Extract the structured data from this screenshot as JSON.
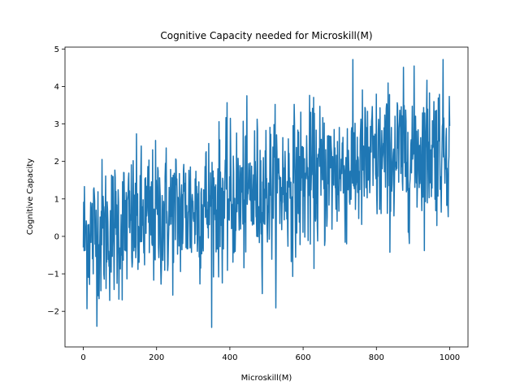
{
  "chart_data": {
    "type": "line",
    "title": "Cognitive Capacity needed for Microskill(M)",
    "xlabel": "Microskill(M)",
    "ylabel": "Cognitive Capacity",
    "xlim": [
      -50,
      1050
    ],
    "ylim": [
      -2.95,
      5.05
    ],
    "x_ticks": [
      0,
      200,
      400,
      600,
      800,
      1000
    ],
    "y_ticks": [
      -2,
      -1,
      0,
      1,
      2,
      3,
      4,
      5
    ],
    "grid": false,
    "series": [
      {
        "color": "#1f77b4",
        "trend": {
          "x_start": 0,
          "x_end": 1000,
          "y_start": 0.0,
          "y_end": 2.5
        },
        "noise_sd": 0.95,
        "n_points": 1000,
        "x": [
          0,
          1000
        ],
        "y_range": [
          -2.6,
          4.72
        ]
      }
    ]
  }
}
